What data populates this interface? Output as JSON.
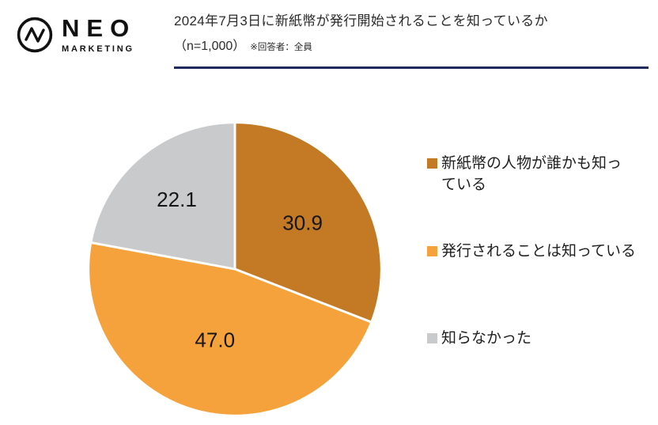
{
  "header": {
    "logo": {
      "name": "NEO",
      "sub": "MARKETING"
    },
    "title_line1": "2024年7月3日に新紙幣が発行開始されることを知っているか",
    "title_line2": "（n=1,000）",
    "title_note": "※回答者：全員"
  },
  "chart_data": {
    "type": "pie",
    "title": "2024年7月3日に新紙幣が発行開始されることを知っているか",
    "subtitle": "（n=1,000）※回答者：全員",
    "categories": [
      "新紙幣の人物が誰かも知っている",
      "発行されることは知っている",
      "知らなかった"
    ],
    "values": [
      30.9,
      47.0,
      22.1
    ],
    "value_labels": [
      "30.9",
      "47.0",
      "22.1"
    ],
    "unit": "%",
    "colors": [
      "#C47A24",
      "#F5A23C",
      "#C9CACB"
    ],
    "start_angle_deg": 0,
    "direction": "clockwise",
    "legend_position": "right",
    "label_radius": [
      0.56,
      0.5,
      0.62
    ],
    "slice_border_color": "#ffffff"
  },
  "legend": {
    "items": [
      {
        "color": "#C47A24",
        "lines": [
          "新紙幣の人物が誰かも知っ",
          "ている"
        ],
        "label": "新紙幣の人物が誰かも知っている"
      },
      {
        "color": "#F5A23C",
        "lines": [
          "発行されることは知っている"
        ],
        "label": "発行されることは知っている"
      },
      {
        "color": "#C9CACB",
        "lines": [
          "知らなかった"
        ],
        "label": "知らなかった"
      }
    ]
  }
}
